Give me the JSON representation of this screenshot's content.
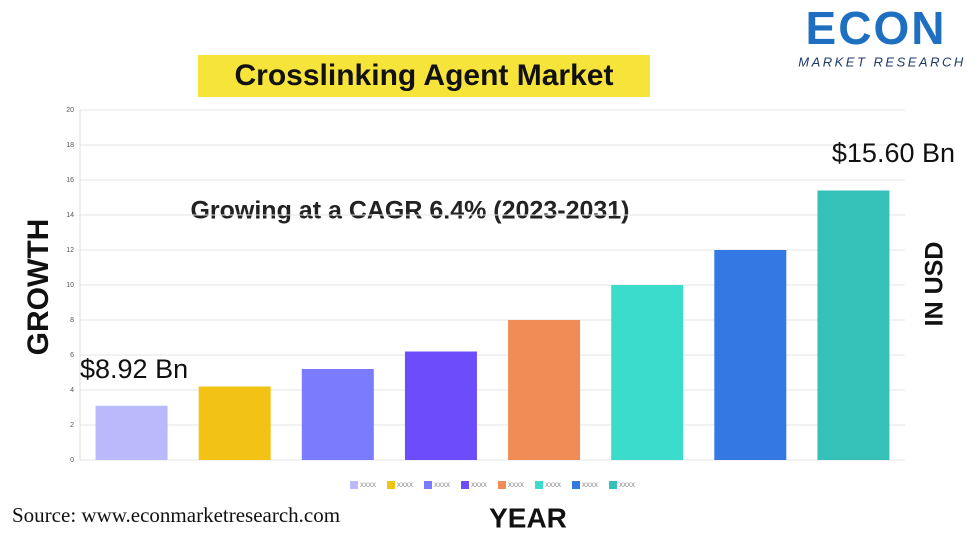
{
  "chart_data": {
    "type": "bar",
    "title": "Crosslinking Agent Market",
    "subtitle": "Growing at a CAGR 6.4% (2023-2031)",
    "y_label": "GROWTH",
    "y_label_right": "IN USD",
    "x_label": "YEAR",
    "annotations": [
      "$8.92 Bn",
      "$15.60 Bn"
    ],
    "categories": [
      null
    ],
    "series": [
      {
        "name": "XXXX",
        "color": "#b9b9fc",
        "values": [
          3.1
        ]
      },
      {
        "name": "XXXX",
        "color": "#f2c314",
        "values": [
          4.2
        ]
      },
      {
        "name": "XXXX",
        "color": "#7b7bfd",
        "values": [
          5.2
        ]
      },
      {
        "name": "XXXX",
        "color": "#6d4cfb",
        "values": [
          6.2
        ]
      },
      {
        "name": "XXXX",
        "color": "#f28c56",
        "values": [
          8
        ]
      },
      {
        "name": "XXXX",
        "color": "#3bdccc",
        "values": [
          10
        ]
      },
      {
        "name": "XXXX",
        "color": "#3478e3",
        "values": [
          12
        ]
      },
      {
        "name": "XXXX",
        "color": "#35c1b8",
        "values": [
          15.4
        ]
      }
    ],
    "ylim": [
      0,
      20
    ],
    "yticks": [
      0,
      2,
      4,
      6,
      8,
      10,
      12,
      14,
      16,
      18,
      20
    ],
    "grid": true,
    "legend": "bottom"
  },
  "logo": {
    "name": "ECON",
    "tagline": "MARKET RESEARCH"
  },
  "source": "Source: www.econmarketresearch.com"
}
